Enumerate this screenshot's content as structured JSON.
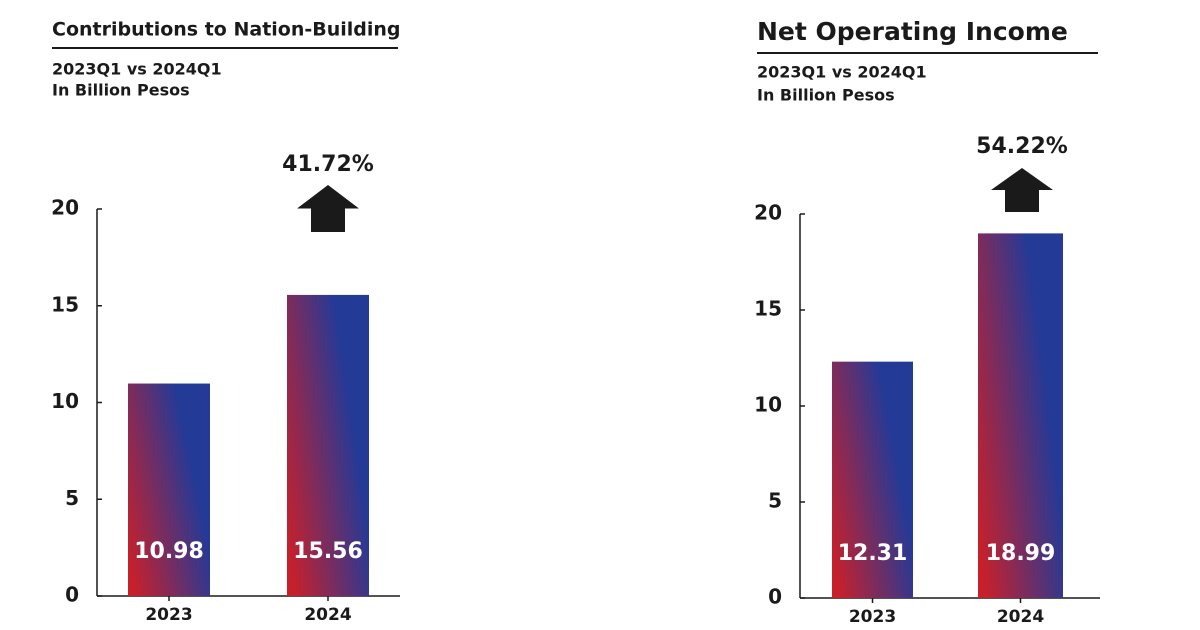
{
  "chart_data": [
    {
      "type": "bar",
      "title": "Contributions to Nation-Building",
      "subtitle": [
        "2023Q1 vs 2024Q1",
        "In Billion Pesos"
      ],
      "categories": [
        "2023",
        "2024"
      ],
      "values": [
        10.98,
        15.56
      ],
      "colors": [
        "#233a97",
        "#c8202a"
      ],
      "annotation": "41.72%",
      "ylim": [
        0,
        20
      ],
      "yticks": [
        0,
        5,
        10,
        15,
        20
      ]
    },
    {
      "type": "bar",
      "title": "Net Operating Income",
      "subtitle": [
        "2023Q1 vs 2024Q1",
        "In Billion Pesos"
      ],
      "categories": [
        "2023",
        "2024"
      ],
      "values": [
        12.31,
        18.99
      ],
      "colors": [
        "#233a97",
        "#c8202a"
      ],
      "annotation": "54.22%",
      "ylim": [
        0,
        20
      ],
      "yticks": [
        0,
        5,
        10,
        15,
        20
      ]
    }
  ]
}
